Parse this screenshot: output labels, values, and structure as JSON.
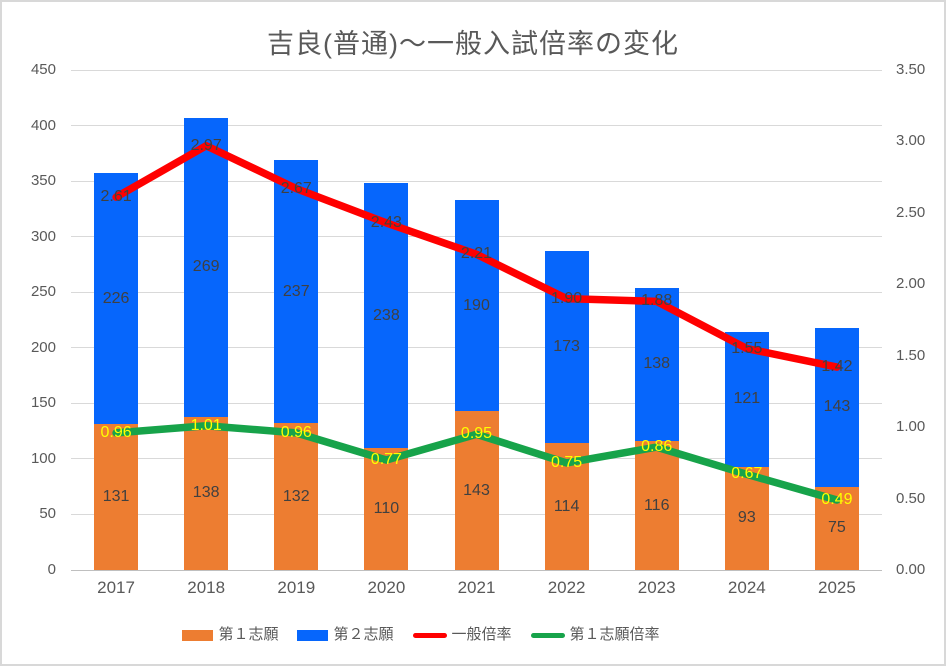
{
  "title": "吉良(普通)～一般入試倍率の変化",
  "chart_data": {
    "type": "combo_stacked_bar_line",
    "categories": [
      "2017",
      "2018",
      "2019",
      "2020",
      "2021",
      "2022",
      "2023",
      "2024",
      "2025"
    ],
    "series": [
      {
        "name": "第１志願",
        "semantic": "first-choice-bar",
        "type": "bar",
        "axis": "left",
        "color": "#ED7D31",
        "label_color": "#404040",
        "values": [
          131,
          138,
          132,
          110,
          143,
          114,
          116,
          93,
          75
        ],
        "labels": [
          "131",
          "138",
          "132",
          "110",
          "143",
          "114",
          "116",
          "93",
          "75"
        ]
      },
      {
        "name": "第２志願",
        "semantic": "second-choice-bar",
        "type": "bar",
        "axis": "left",
        "color": "#0666FC",
        "label_color": "#404040",
        "values": [
          226,
          269,
          237,
          238,
          190,
          173,
          138,
          121,
          143
        ],
        "labels": [
          "226",
          "269",
          "237",
          "238",
          "190",
          "173",
          "138",
          "121",
          "143"
        ]
      },
      {
        "name": "一般倍率",
        "semantic": "general-ratio-line",
        "type": "line",
        "axis": "right",
        "color": "#FF0000",
        "label_color": "#404040",
        "values": [
          2.61,
          2.97,
          2.67,
          2.43,
          2.21,
          1.9,
          1.88,
          1.55,
          1.42
        ],
        "labels": [
          "2.61",
          "2.97",
          "2.67",
          "2.43",
          "2.21",
          "1.90",
          "1.88",
          "1.55",
          "1.42"
        ]
      },
      {
        "name": "第１志願倍率",
        "semantic": "first-choice-ratio-line",
        "type": "line",
        "axis": "right",
        "color": "#17A34A",
        "label_color": "#FFFF00",
        "values": [
          0.96,
          1.01,
          0.96,
          0.77,
          0.95,
          0.75,
          0.86,
          0.67,
          0.49
        ],
        "labels": [
          "0.96",
          "1.01",
          "0.96",
          "0.77",
          "0.95",
          "0.75",
          "0.86",
          "0.67",
          "0.49"
        ]
      }
    ],
    "axes": {
      "left": {
        "min": 0,
        "max": 450,
        "step": 50,
        "tick_labels": [
          "0",
          "50",
          "100",
          "150",
          "200",
          "250",
          "300",
          "350",
          "400",
          "450"
        ]
      },
      "right": {
        "min": 0,
        "max": 3.5,
        "step": 0.5,
        "tick_labels": [
          "0.00",
          "0.50",
          "1.00",
          "1.50",
          "2.00",
          "2.50",
          "3.00",
          "3.50"
        ]
      }
    },
    "grid": true,
    "legend_position": "bottom"
  }
}
